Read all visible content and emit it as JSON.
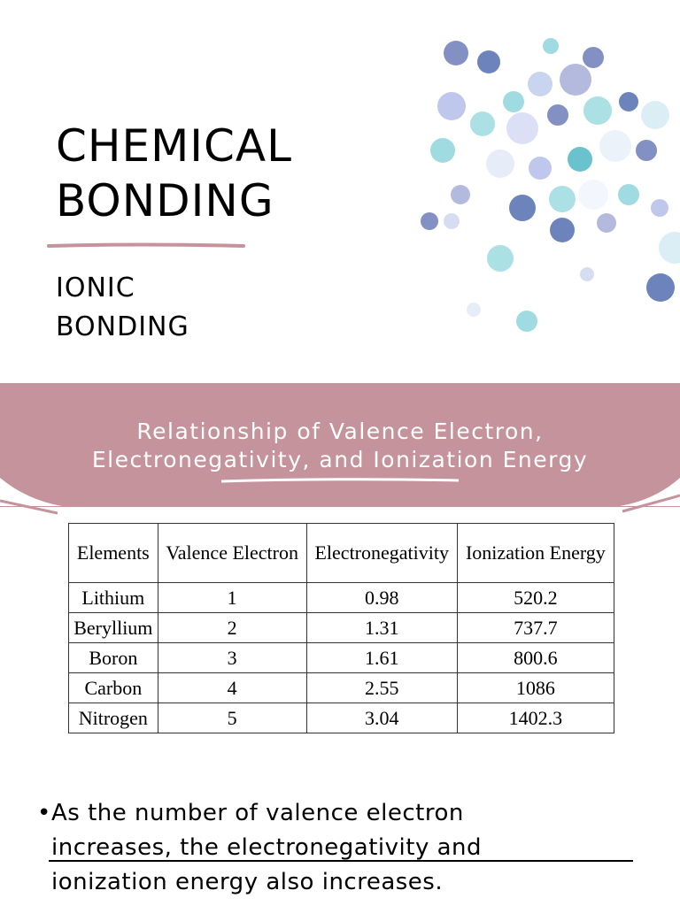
{
  "header": {
    "title": [
      "CHEMICAL",
      "BONDING"
    ],
    "subtitle": [
      "IONIC",
      "BONDING"
    ]
  },
  "banner": {
    "title": [
      "Relationship of Valence Electron,",
      "Electronegativity, and Ionization Energy"
    ]
  },
  "table": {
    "columns": [
      "Elements",
      "Valence Electron",
      "Electronegativity",
      "Ionization Energy"
    ],
    "rows": [
      [
        "Lithium",
        "1",
        "0.98",
        "520.2"
      ],
      [
        "Beryllium",
        "2",
        "1.31",
        "737.7"
      ],
      [
        "Boron",
        "3",
        "1.61",
        "800.6"
      ],
      [
        "Carbon",
        "4",
        "2.55",
        "1086"
      ],
      [
        "Nitrogen",
        "5",
        "3.04",
        "1402.3"
      ]
    ]
  },
  "bullet": {
    "lines": [
      "As the number of valence electron",
      "increases, the electronegativity and",
      "ionization energy also increases."
    ]
  }
}
